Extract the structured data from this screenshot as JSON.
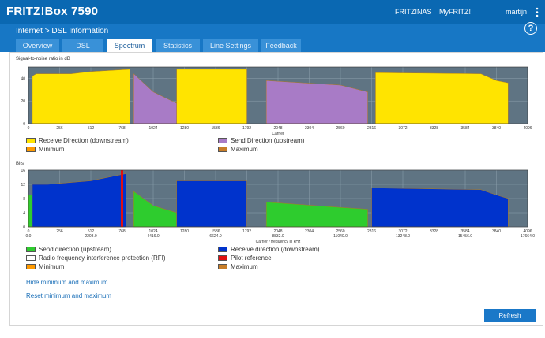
{
  "header": {
    "brand": "FRITZ!Box 7590",
    "links": [
      "FRITZ!NAS",
      "MyFRITZ!",
      "martijn"
    ],
    "menu_icon": "more-vertical-icon"
  },
  "breadcrumb": {
    "parent": "Internet",
    "separator": ">",
    "current": "DSL Information"
  },
  "help_label": "?",
  "tabs": [
    {
      "label": "Overview",
      "active": false
    },
    {
      "label": "DSL",
      "active": false
    },
    {
      "label": "Spectrum",
      "active": true
    },
    {
      "label": "Statistics",
      "active": false
    },
    {
      "label": "Line Settings",
      "active": false
    },
    {
      "label": "Feedback",
      "active": false
    }
  ],
  "snr_chart": {
    "title": "Signal-to-noise ratio in dB",
    "xlabel": "Carrier",
    "x_ticks": [
      "0",
      "256",
      "512",
      "768",
      "1024",
      "1280",
      "1536",
      "1792",
      "2048",
      "2304",
      "2560",
      "2816",
      "3072",
      "3328",
      "3584",
      "3840",
      "4096"
    ],
    "y_ticks": [
      "0",
      "20",
      "40"
    ],
    "legend": [
      {
        "label": "Receive Direction (downstream)",
        "color": "#ffe400"
      },
      {
        "label": "Send Direction (upstream)",
        "color": "#a87bc6"
      },
      {
        "label": "Minimum",
        "color": "#ff9a00"
      },
      {
        "label": "Maximum",
        "color": "#c77d28"
      }
    ]
  },
  "bits_chart": {
    "title": "Bits",
    "xlabel": "Carrier / frequency in kHz",
    "x_ticks": [
      "0",
      "256",
      "512",
      "768",
      "1024",
      "1280",
      "1536",
      "1792",
      "2048",
      "2304",
      "2560",
      "2816",
      "3072",
      "3328",
      "3584",
      "3840",
      "4096"
    ],
    "x_ticks_khz": [
      "0.0",
      "2208.0",
      "4416.0",
      "6624.0",
      "8832.0",
      "11040.0",
      "13248.0",
      "15456.0",
      "17664.0"
    ],
    "y_ticks": [
      "0",
      "4",
      "8",
      "12",
      "16"
    ],
    "legend": [
      {
        "label": "Send direction (upstream)",
        "color": "#2ecc2e"
      },
      {
        "label": "Receive direction (downstream)",
        "color": "#0033cc"
      },
      {
        "label": "Radio frequency interference protection (RFI)",
        "color": "#ffffff"
      },
      {
        "label": "Pilot reference",
        "color": "#e01010"
      },
      {
        "label": "Minimum",
        "color": "#ff9a00"
      },
      {
        "label": "Maximum",
        "color": "#c77d28"
      }
    ]
  },
  "chart_data": [
    {
      "type": "area",
      "title": "Signal-to-noise ratio in dB",
      "xlabel": "Carrier",
      "ylabel": "",
      "xlim": [
        0,
        4096
      ],
      "ylim": [
        0,
        50
      ],
      "series": [
        {
          "name": "Receive Direction (downstream)",
          "color": "#ffe400",
          "segments": [
            [
              [
                32,
                42
              ],
              [
                64,
                44
              ],
              [
                352,
                44
              ],
              [
                512,
                46
              ],
              [
                832,
                48
              ]
            ],
            [
              [
                1216,
                48
              ],
              [
                1792,
                48
              ]
            ],
            [
              [
                2848,
                45
              ],
              [
                3712,
                44
              ],
              [
                3840,
                38
              ],
              [
                3936,
                36
              ]
            ]
          ]
        },
        {
          "name": "Send Direction (upstream)",
          "color": "#a87bc6",
          "segments": [
            [
              [
                864,
                44
              ],
              [
                1024,
                28
              ],
              [
                1216,
                18
              ]
            ],
            [
              [
                1952,
                38
              ],
              [
                2560,
                34
              ],
              [
                2784,
                28
              ]
            ]
          ]
        }
      ]
    },
    {
      "type": "area",
      "title": "Bits",
      "xlabel": "Carrier / frequency in kHz",
      "ylabel": "",
      "xlim": [
        0,
        4096
      ],
      "ylim": [
        0,
        16
      ],
      "series": [
        {
          "name": "Send direction (upstream)",
          "color": "#2ecc2e",
          "segments": [
            [
              [
                0,
                9
              ],
              [
                32,
                9
              ],
              [
                64,
                10
              ],
              [
                512,
                10
              ]
            ],
            [
              [
                864,
                10
              ],
              [
                1024,
                6
              ],
              [
                1216,
                4
              ]
            ],
            [
              [
                1952,
                7
              ],
              [
                2560,
                5.5
              ],
              [
                2784,
                5
              ]
            ]
          ]
        },
        {
          "name": "Receive direction (downstream)",
          "color": "#0033cc",
          "segments": [
            [
              [
                32,
                12
              ],
              [
                160,
                12
              ],
              [
                512,
                13
              ],
              [
                800,
                15
              ]
            ],
            [
              [
                1216,
                13
              ],
              [
                1792,
                13
              ]
            ],
            [
              [
                2816,
                11
              ],
              [
                3712,
                10.5
              ],
              [
                3840,
                9
              ],
              [
                3936,
                8
              ]
            ]
          ]
        },
        {
          "name": "Pilot reference",
          "color": "#e01010",
          "x": [
            768
          ]
        }
      ]
    }
  ],
  "links": {
    "hide_minmax": "Hide minimum and maximum",
    "reset_minmax": "Reset minimum and maximum"
  },
  "refresh_label": "Refresh"
}
